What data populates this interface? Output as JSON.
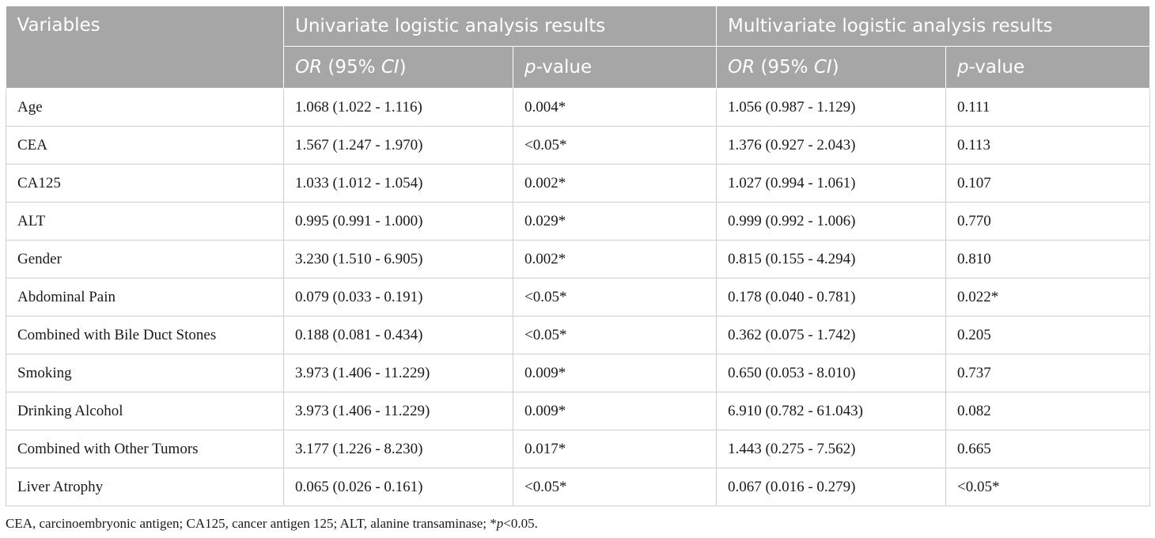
{
  "table": {
    "header": {
      "variables": "Variables",
      "univariate_group": "Univariate logistic analysis results",
      "multivariate_group": "Multivariate logistic analysis results",
      "or_label": "OR",
      "ci_open": " (95% ",
      "ci_label": "CI",
      "ci_close": ")",
      "p_label": "p",
      "value_label": "-value"
    },
    "rows": [
      {
        "variable": "Age",
        "uni_or": "1.068 (1.022 - 1.116)",
        "uni_p": "0.004*",
        "multi_or": "1.056 (0.987 - 1.129)",
        "multi_p": "0.111"
      },
      {
        "variable": "CEA",
        "uni_or": "1.567 (1.247 - 1.970)",
        "uni_p": "<0.05*",
        "multi_or": "1.376 (0.927 - 2.043)",
        "multi_p": "0.113"
      },
      {
        "variable": "CA125",
        "uni_or": "1.033 (1.012 - 1.054)",
        "uni_p": "0.002*",
        "multi_or": "1.027 (0.994 - 1.061)",
        "multi_p": "0.107"
      },
      {
        "variable": "ALT",
        "uni_or": "0.995 (0.991 - 1.000)",
        "uni_p": "0.029*",
        "multi_or": "0.999 (0.992 - 1.006)",
        "multi_p": "0.770"
      },
      {
        "variable": "Gender",
        "uni_or": "3.230 (1.510 - 6.905)",
        "uni_p": "0.002*",
        "multi_or": "0.815 (0.155 - 4.294)",
        "multi_p": "0.810"
      },
      {
        "variable": "Abdominal Pain",
        "uni_or": "0.079 (0.033 - 0.191)",
        "uni_p": "<0.05*",
        "multi_or": "0.178 (0.040 - 0.781)",
        "multi_p": "0.022*"
      },
      {
        "variable": "Combined with Bile Duct Stones",
        "uni_or": "0.188 (0.081 - 0.434)",
        "uni_p": "<0.05*",
        "multi_or": "0.362 (0.075 - 1.742)",
        "multi_p": "0.205"
      },
      {
        "variable": "Smoking",
        "uni_or": "3.973 (1.406 - 11.229)",
        "uni_p": "0.009*",
        "multi_or": "0.650 (0.053 - 8.010)",
        "multi_p": "0.737"
      },
      {
        "variable": "Drinking Alcohol",
        "uni_or": "3.973 (1.406 - 11.229)",
        "uni_p": "0.009*",
        "multi_or": "6.910 (0.782 - 61.043)",
        "multi_p": "0.082"
      },
      {
        "variable": "Combined with Other Tumors",
        "uni_or": "3.177 (1.226 - 8.230)",
        "uni_p": "0.017*",
        "multi_or": "1.443 (0.275 - 7.562)",
        "multi_p": "0.665"
      },
      {
        "variable": "Liver Atrophy",
        "uni_or": "0.065 (0.026 - 0.161)",
        "uni_p": "<0.05*",
        "multi_or": "0.067 (0.016 - 0.279)",
        "multi_p": "<0.05*"
      }
    ]
  },
  "footnote": {
    "text": "CEA, carcinoembryonic antigen; CA125, cancer antigen 125; ALT, alanine transaminase; *",
    "p_italic": "p",
    "suffix": "<0.05."
  },
  "colors": {
    "header_bg": "#a6a6a6",
    "header_text": "#ffffff",
    "border": "#cfcfcf"
  }
}
